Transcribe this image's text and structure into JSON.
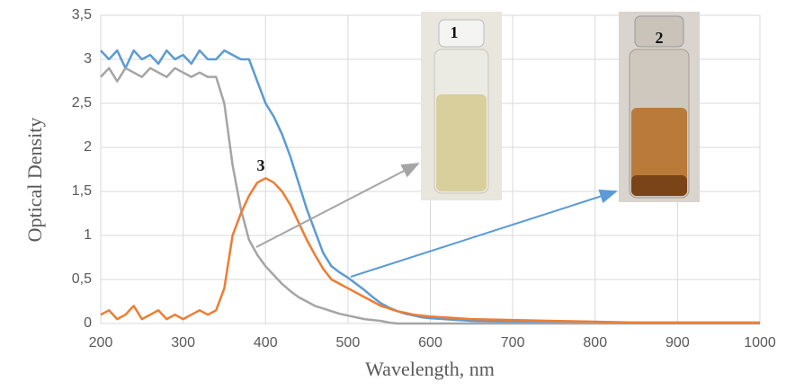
{
  "chart_data": {
    "type": "line",
    "xlabel": "Wavelength, nm",
    "ylabel": "Optical Density",
    "annotations": [
      "1",
      "2",
      "3"
    ],
    "x": [
      200,
      210,
      220,
      230,
      240,
      250,
      260,
      270,
      280,
      290,
      300,
      310,
      320,
      330,
      340,
      350,
      360,
      370,
      380,
      390,
      400,
      410,
      420,
      430,
      440,
      450,
      460,
      470,
      480,
      490,
      500,
      510,
      520,
      530,
      540,
      550,
      560,
      570,
      580,
      590,
      600,
      650,
      700,
      750,
      800,
      850,
      900,
      950,
      1000
    ],
    "series": [
      {
        "color": "#5b9bd5",
        "values": [
          3.1,
          3.0,
          3.1,
          2.9,
          3.1,
          3.0,
          3.05,
          2.95,
          3.1,
          3.0,
          3.05,
          2.95,
          3.1,
          3.0,
          3.0,
          3.1,
          3.05,
          3.0,
          3.0,
          2.75,
          2.5,
          2.35,
          2.15,
          1.9,
          1.6,
          1.3,
          1.05,
          0.8,
          0.65,
          0.58,
          0.52,
          0.45,
          0.38,
          0.3,
          0.23,
          0.18,
          0.14,
          0.11,
          0.09,
          0.07,
          0.06,
          0.03,
          0.02,
          0.01,
          0.01,
          0.01,
          0.01,
          0.01,
          0.01
        ]
      },
      {
        "color": "#a5a5a5",
        "values": [
          2.8,
          2.9,
          2.75,
          2.9,
          2.85,
          2.8,
          2.9,
          2.85,
          2.8,
          2.9,
          2.85,
          2.8,
          2.85,
          2.8,
          2.8,
          2.5,
          1.8,
          1.3,
          0.95,
          0.78,
          0.65,
          0.55,
          0.45,
          0.37,
          0.3,
          0.25,
          0.2,
          0.17,
          0.14,
          0.11,
          0.09,
          0.07,
          0.05,
          0.04,
          0.03,
          0.01,
          0,
          0,
          0,
          0,
          0,
          0,
          0,
          0,
          0,
          0,
          0,
          0,
          0
        ]
      },
      {
        "color": "#ed7d31",
        "values": [
          0.1,
          0.15,
          0.05,
          0.1,
          0.2,
          0.05,
          0.1,
          0.15,
          0.05,
          0.1,
          0.05,
          0.1,
          0.15,
          0.1,
          0.15,
          0.4,
          1.0,
          1.25,
          1.45,
          1.6,
          1.65,
          1.6,
          1.5,
          1.35,
          1.15,
          0.95,
          0.78,
          0.62,
          0.5,
          0.45,
          0.4,
          0.35,
          0.3,
          0.25,
          0.2,
          0.17,
          0.14,
          0.12,
          0.1,
          0.09,
          0.08,
          0.05,
          0.04,
          0.03,
          0.02,
          0.01,
          0.01,
          0.01,
          0.01
        ]
      }
    ],
    "xlim": [
      200,
      1000
    ],
    "ylim": [
      0,
      3.5
    ],
    "xticks": [
      200,
      300,
      400,
      500,
      600,
      700,
      800,
      900,
      1000
    ],
    "yticks": [
      0,
      {
        "value": 0.5,
        "label": "0,5"
      },
      1,
      {
        "value": 1.5,
        "label": "1,5"
      },
      2,
      {
        "value": 2.5,
        "label": "2,5"
      },
      3,
      {
        "value": 3.5,
        "label": "3,5"
      }
    ],
    "grid": true
  }
}
